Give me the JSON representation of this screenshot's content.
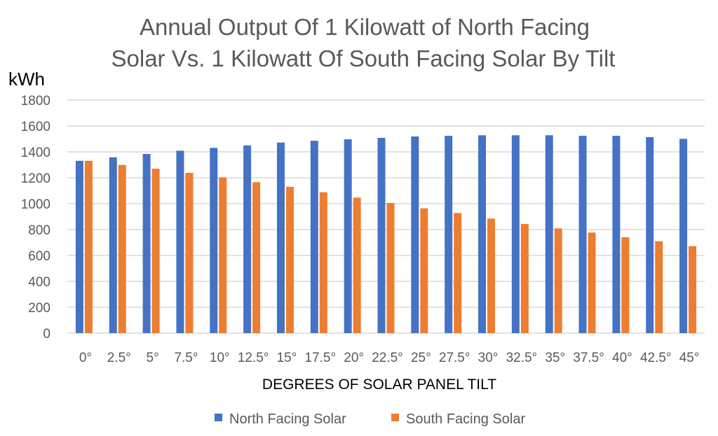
{
  "chart_data": {
    "type": "bar",
    "title": [
      "Annual Output Of 1 Kilowatt of North Facing",
      "Solar Vs. 1 Kilowatt Of South Facing Solar By Tilt"
    ],
    "ylabel": "kWh",
    "xlabel": "DEGREES OF SOLAR PANEL TILT",
    "ylim": [
      0,
      1800
    ],
    "yticks": [
      0,
      200,
      400,
      600,
      800,
      1000,
      1200,
      1400,
      1600,
      1800
    ],
    "grid": true,
    "legend_position": "bottom",
    "categories": [
      "0°",
      "2.5°",
      "5°",
      "7.5°",
      "10°",
      "12.5°",
      "15°",
      "17.5°",
      "20°",
      "22.5°",
      "25°",
      "27.5°",
      "30°",
      "32.5°",
      "35°",
      "37.5°",
      "40°",
      "42.5°",
      "45°"
    ],
    "series": [
      {
        "name": "North Facing Solar",
        "color": "#4472C4",
        "values": [
          1331,
          1358,
          1384,
          1409,
          1431,
          1450,
          1472,
          1486,
          1497,
          1508,
          1519,
          1524,
          1528,
          1528,
          1528,
          1524,
          1524,
          1514,
          1501
        ]
      },
      {
        "name": "South Facing Solar",
        "color": "#ED7D31",
        "values": [
          1331,
          1299,
          1270,
          1238,
          1202,
          1166,
          1130,
          1088,
          1047,
          1005,
          964,
          928,
          885,
          843,
          809,
          777,
          741,
          710,
          672
        ]
      }
    ]
  }
}
